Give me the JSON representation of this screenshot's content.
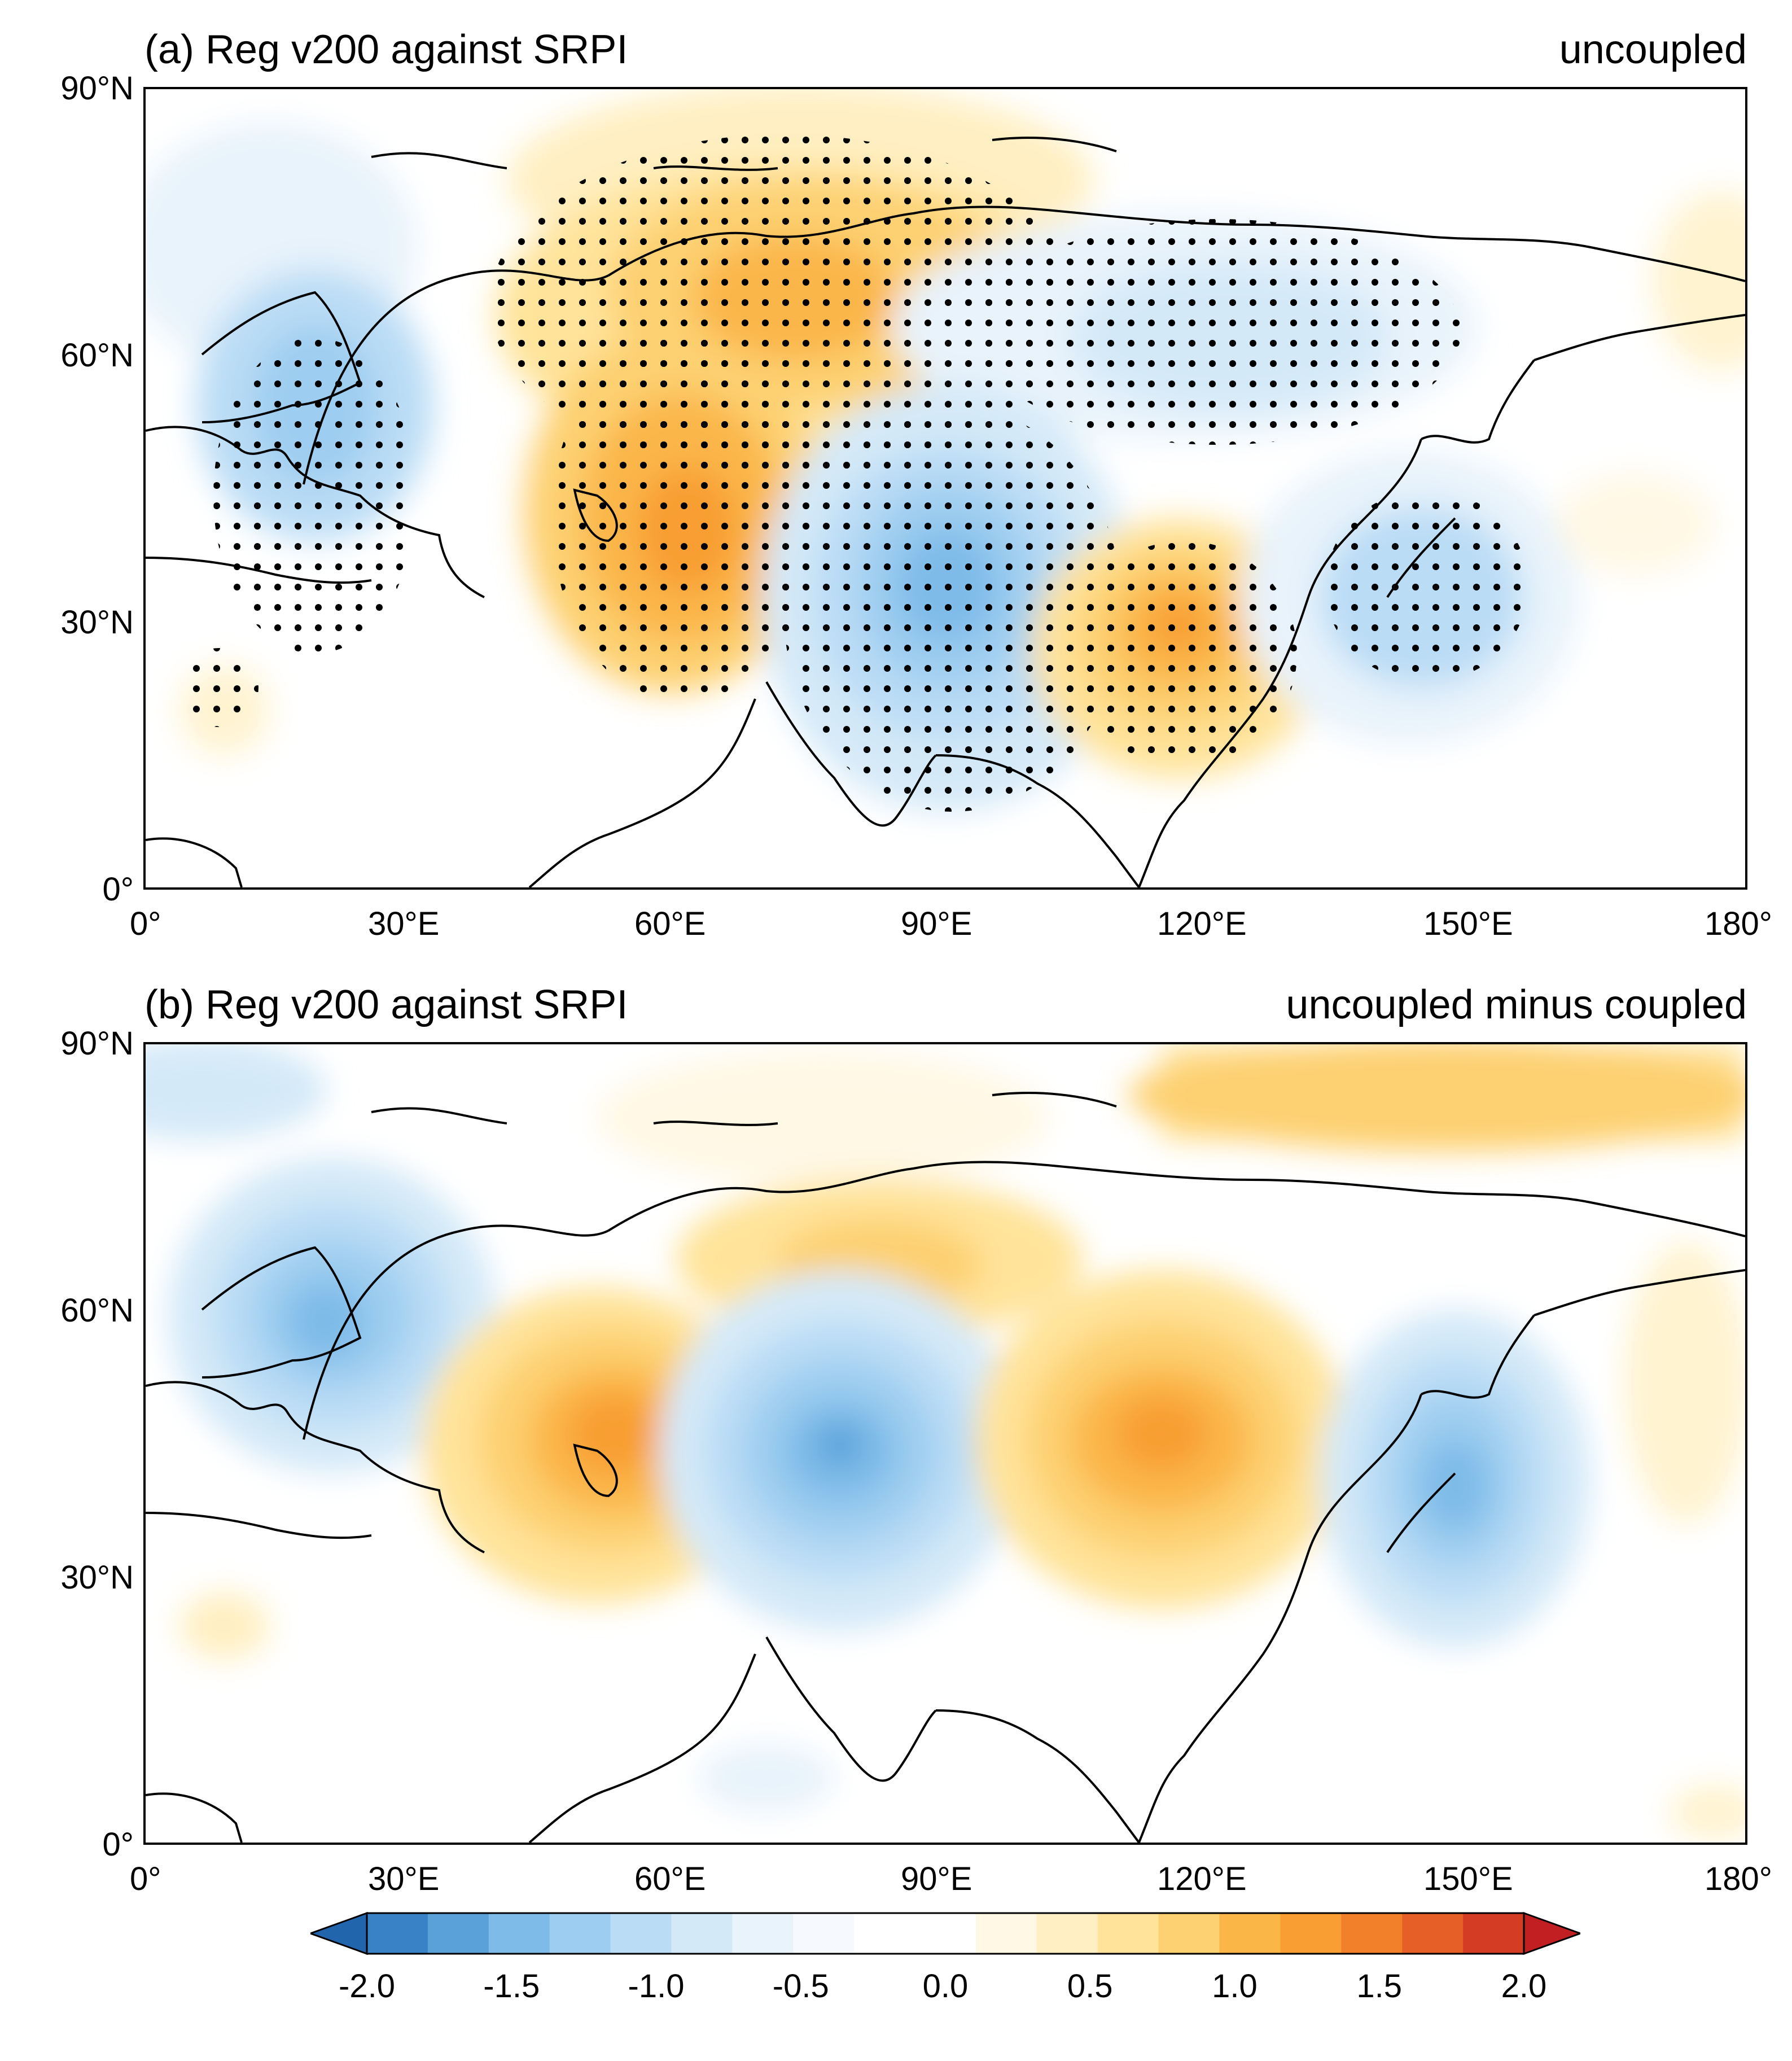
{
  "panels": [
    {
      "id": "a",
      "title_left": "(a) Reg v200 against SRPI",
      "title_right": "uncoupled",
      "lat_labels": [
        "90°N",
        "60°N",
        "30°N",
        "0°"
      ],
      "lon_labels": [
        "0°",
        "30°E",
        "60°E",
        "90°E",
        "120°E",
        "150°E",
        "180°"
      ],
      "stippled": true
    },
    {
      "id": "b",
      "title_left": "(b) Reg v200 against SRPI",
      "title_right": "uncoupled minus coupled",
      "lat_labels": [
        "90°N",
        "60°N",
        "30°N",
        "0°"
      ],
      "lon_labels": [
        "0°",
        "30°E",
        "60°E",
        "90°E",
        "120°E",
        "150°E",
        "180°"
      ],
      "stippled": false
    }
  ],
  "colorbar": {
    "labels": [
      "-2.0",
      "-1.5",
      "-1.0",
      "-0.5",
      "0.0",
      "0.5",
      "1.0",
      "1.5",
      "2.0"
    ],
    "colors": [
      "#2166ac",
      "#3a82c6",
      "#5aa1da",
      "#7ebbe8",
      "#9dcdf0",
      "#badcf5",
      "#d4e9f8",
      "#e8f3fb",
      "#f6fafe",
      "#ffffff",
      "#ffffff",
      "#fff8e5",
      "#ffefc2",
      "#ffe39a",
      "#fdd071",
      "#fbb648",
      "#f89e32",
      "#f2802a",
      "#e65f26",
      "#d43d24",
      "#c11f22"
    ]
  },
  "chart_data": {
    "type": "heatmap",
    "variable": "v200 regression against SRPI",
    "xlim": [
      0,
      180
    ],
    "ylim": [
      0,
      90
    ],
    "clim": [
      -2.0,
      2.0
    ],
    "panel_a_centers": [
      {
        "name": "high-arctic-russia",
        "lon": 65,
        "lat": 68,
        "value": 0.9
      },
      {
        "name": "high-caspian",
        "lon": 60,
        "lat": 45,
        "value": 1.0
      },
      {
        "name": "low-tibet",
        "lon": 89,
        "lat": 40,
        "value": -1.1
      },
      {
        "name": "high-north-china",
        "lon": 116,
        "lat": 37,
        "value": 1.0
      },
      {
        "name": "low-japan",
        "lon": 148,
        "lat": 40,
        "value": -0.5
      },
      {
        "name": "low-europe",
        "lon": 25,
        "lat": 58,
        "value": -0.5
      },
      {
        "name": "low-siberia",
        "lon": 125,
        "lat": 62,
        "value": -0.4
      }
    ],
    "panel_b_centers": [
      {
        "name": "low-scandinavia",
        "lon": 20,
        "lat": 57,
        "value": -0.9
      },
      {
        "name": "high-caspian",
        "lon": 50,
        "lat": 46,
        "value": 0.9
      },
      {
        "name": "low-central-asia",
        "lon": 78,
        "lat": 44,
        "value": -1.1
      },
      {
        "name": "high-mongolia",
        "lon": 114,
        "lat": 45,
        "value": 1.0
      },
      {
        "name": "low-japan",
        "lon": 144,
        "lat": 42,
        "value": -1.0
      },
      {
        "name": "high-arctic",
        "lon": 150,
        "lat": 85,
        "value": 0.6
      },
      {
        "name": "high-west-siberia",
        "lon": 80,
        "lat": 65,
        "value": 0.5
      }
    ]
  }
}
